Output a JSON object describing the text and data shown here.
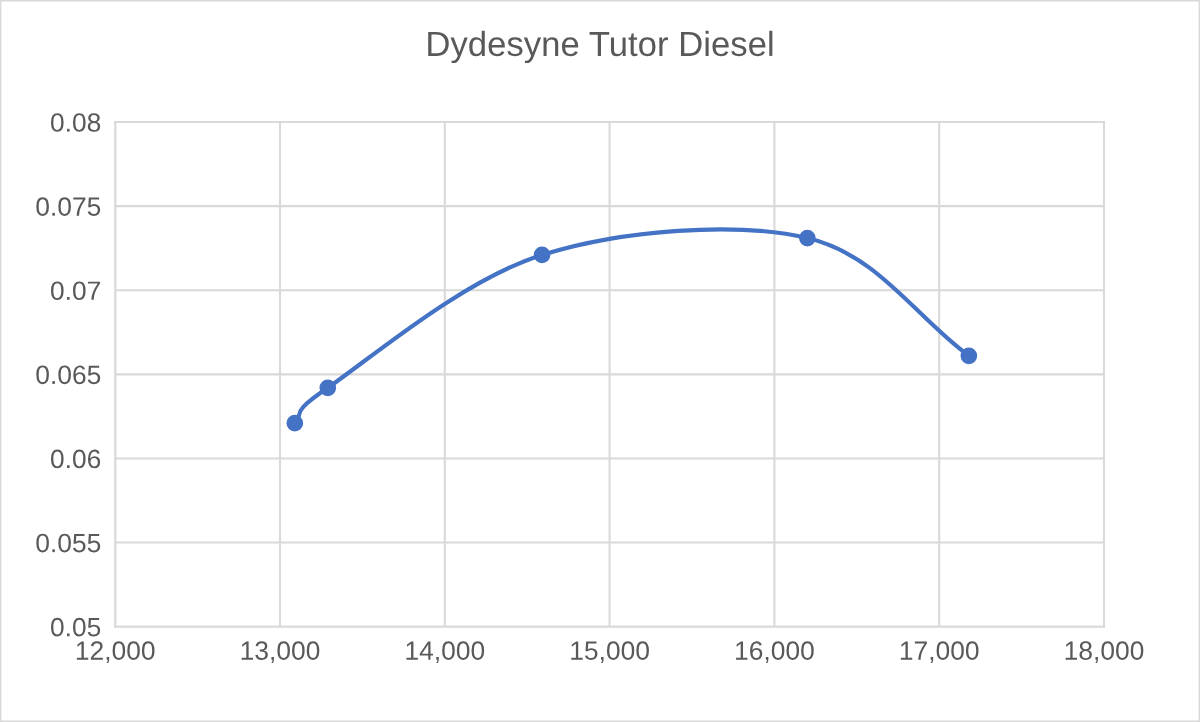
{
  "chart_data": {
    "type": "line",
    "title": "Dydesyne Tutor Diesel",
    "x": [
      13090,
      13290,
      14590,
      16200,
      17180
    ],
    "values": [
      0.0621,
      0.0642,
      0.0721,
      0.0731,
      0.0661
    ],
    "color": "#4472c4",
    "xlim": [
      12000,
      18000
    ],
    "xticks": [
      {
        "value": 12000,
        "label": "12,000"
      },
      {
        "value": 13000,
        "label": "13,000"
      },
      {
        "value": 14000,
        "label": "14,000"
      },
      {
        "value": 15000,
        "label": "15,000"
      },
      {
        "value": 16000,
        "label": "16,000"
      },
      {
        "value": 17000,
        "label": "17,000"
      },
      {
        "value": 18000,
        "label": "18,000"
      }
    ],
    "ylim": [
      0.05,
      0.08
    ],
    "yticks": [
      0.05,
      0.055,
      0.06,
      0.065,
      0.07,
      0.075,
      0.08
    ],
    "grid": true,
    "marker": "circle",
    "line_style": "solid"
  }
}
